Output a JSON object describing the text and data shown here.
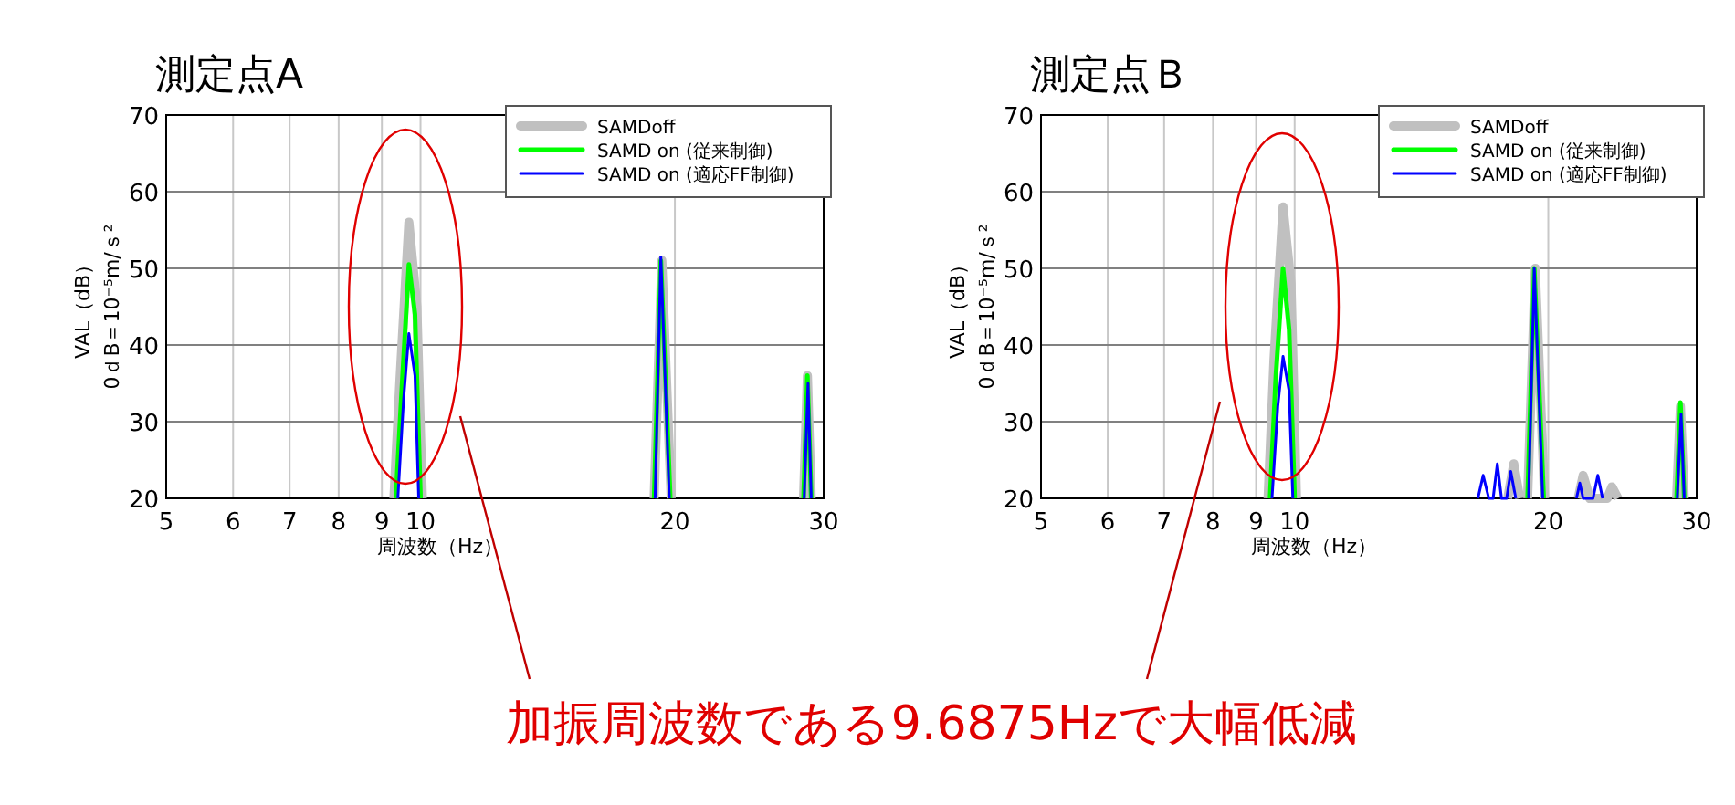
{
  "chart_data": [
    {
      "type": "line",
      "title": "測定点A",
      "xlabel": "周波数（Hz）",
      "ylabel": "VAL（dB）\n0ｄB＝10⁻⁵m/ｓ²",
      "log": "x",
      "xlim": [
        5,
        30
      ],
      "xticks": [
        5,
        6,
        7,
        8,
        9,
        10,
        20,
        30
      ],
      "ylim": [
        20,
        70
      ],
      "yticks": [
        20,
        30,
        40,
        50,
        60,
        70
      ],
      "grid": true,
      "legend": "top right",
      "annotations": [
        "加振周波数である9.6875Hzで大幅低減"
      ],
      "series": [
        {
          "name": "SAMDoff",
          "color": "#c0c0c0",
          "x": [
            9.3,
            9.45,
            9.6875,
            9.9,
            10.05,
            null,
            18.9,
            19.3,
            19.8,
            null,
            28.4,
            28.7,
            29.0
          ],
          "values": [
            20,
            35,
            56,
            45,
            20,
            null,
            20,
            51,
            20,
            null,
            20,
            36,
            20
          ]
        },
        {
          "name": "SAMD on (従来制御)",
          "color": "#00ff00",
          "x": [
            9.35,
            9.5,
            9.6875,
            9.85,
            10.0,
            null,
            18.9,
            19.25,
            19.75,
            null,
            28.4,
            28.7,
            29.0
          ],
          "values": [
            20,
            34,
            50.5,
            44,
            20,
            null,
            20,
            51,
            20,
            null,
            20,
            36,
            20
          ]
        },
        {
          "name": "SAMD on (適応FF制御)",
          "color": "#0000ff",
          "x": [
            9.4,
            9.55,
            9.6875,
            9.85,
            9.95,
            null,
            18.95,
            19.25,
            19.7,
            null,
            28.45,
            28.75,
            29.0
          ],
          "values": [
            20,
            33,
            41.5,
            36,
            20,
            null,
            20,
            51.5,
            20,
            null,
            20,
            35,
            20
          ]
        }
      ]
    },
    {
      "type": "line",
      "title": "測定点Ｂ",
      "xlabel": "周波数（Hz）",
      "ylabel": "VAL（dB）\n0ｄB＝10⁻⁵m/ｓ²",
      "log": "x",
      "xlim": [
        5,
        30
      ],
      "xticks": [
        5,
        6,
        7,
        8,
        9,
        10,
        20,
        30
      ],
      "ylim": [
        20,
        70
      ],
      "yticks": [
        20,
        30,
        40,
        50,
        60,
        70
      ],
      "grid": true,
      "legend": "top right",
      "series": [
        {
          "name": "SAMDoff",
          "color": "#c0c0c0",
          "x": [
            9.3,
            9.45,
            9.6875,
            9.9,
            10.05,
            null,
            17.9,
            18.2,
            18.5,
            null,
            18.9,
            19.3,
            19.8,
            null,
            21.7,
            22.0,
            22.4,
            23.5,
            23.8,
            24.2,
            null,
            28.4,
            28.7,
            29.0
          ],
          "values": [
            20,
            38,
            58,
            48,
            20,
            null,
            20,
            24.5,
            20,
            null,
            20,
            50,
            20,
            null,
            20,
            23,
            20,
            20,
            21.5,
            20,
            null,
            20,
            32,
            20
          ]
        },
        {
          "name": "SAMD on (従来制御)",
          "color": "#00ff00",
          "x": [
            9.35,
            9.5,
            9.6875,
            9.85,
            10.0,
            null,
            18.9,
            19.25,
            19.75,
            null,
            28.4,
            28.7,
            29.0
          ],
          "values": [
            20,
            36,
            50,
            42,
            20,
            null,
            20,
            50,
            20,
            null,
            20,
            32.5,
            20
          ]
        },
        {
          "name": "SAMD on (適応FF制御)",
          "color": "#0000ff",
          "x": [
            9.4,
            9.55,
            9.6875,
            9.85,
            9.95,
            null,
            16.5,
            16.74,
            17.0,
            17.2,
            17.4,
            17.6,
            17.85,
            18.05,
            18.3,
            null,
            18.95,
            19.25,
            19.7,
            null,
            21.6,
            21.8,
            22.0,
            22.6,
            22.9,
            23.2,
            null,
            28.45,
            28.75,
            29.0
          ],
          "values": [
            20,
            32,
            38.5,
            34,
            20,
            null,
            20,
            23,
            20,
            20,
            24.5,
            20,
            20,
            23.5,
            20,
            null,
            20,
            50,
            20,
            null,
            20,
            22,
            20,
            20,
            23,
            20,
            null,
            20,
            31,
            20
          ]
        }
      ]
    }
  ]
}
